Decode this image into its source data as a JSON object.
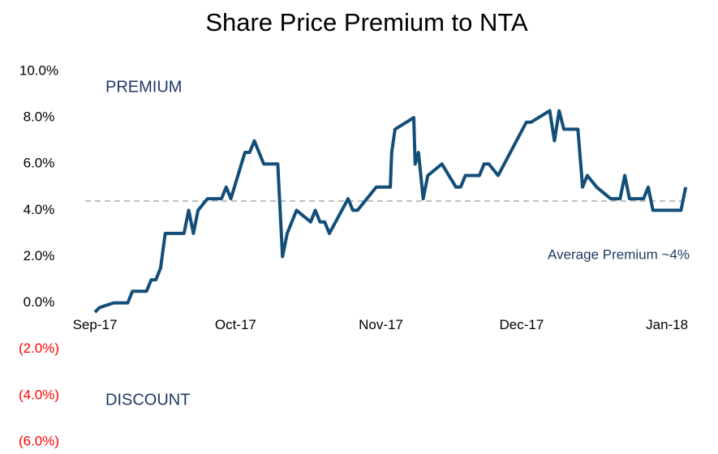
{
  "chart_data": {
    "type": "line",
    "title": "Share Price Premium to NTA",
    "annotations": [
      {
        "text": "PREMIUM",
        "color": "#1f3864"
      },
      {
        "text": "DISCOUNT",
        "color": "#1f3864"
      },
      {
        "text": "Average Premium ~4%",
        "color": "#1f3864"
      }
    ],
    "average_line": {
      "value": 4.4,
      "color": "#bfbfbf",
      "dashed": true
    },
    "negative_tick_color": "#ff0000",
    "x": [
      0,
      1,
      4,
      7,
      8,
      11,
      12,
      13,
      14,
      15,
      19,
      20,
      21,
      22,
      24,
      27,
      28,
      29,
      32,
      33,
      34,
      36,
      39,
      40,
      41,
      43,
      46,
      47,
      48,
      49,
      50,
      54,
      55,
      56,
      58,
      60,
      63,
      63.3,
      64,
      68,
      68.3,
      69,
      70,
      71,
      74,
      77,
      78,
      79,
      82,
      83,
      84,
      86,
      92,
      93,
      97,
      98,
      99,
      100,
      103,
      104,
      105,
      107,
      110,
      112,
      113,
      114,
      117,
      118,
      119,
      125,
      126
    ],
    "series": [
      {
        "name": "Premium",
        "color": "#124e78",
        "values": [
          -0.4,
          -0.2,
          0,
          0,
          0.5,
          0.5,
          1.0,
          1.0,
          1.5,
          3.0,
          3.0,
          4.0,
          3.0,
          4.0,
          4.5,
          4.5,
          5.0,
          4.5,
          6.5,
          6.5,
          7.0,
          6.0,
          6.0,
          2.0,
          3.0,
          4.0,
          3.5,
          4.0,
          3.5,
          3.5,
          3.0,
          4.5,
          4.0,
          4.0,
          4.5,
          5.0,
          5.0,
          6.5,
          7.5,
          8.0,
          6.0,
          6.5,
          4.5,
          5.5,
          6.0,
          5.0,
          5.0,
          5.5,
          5.5,
          6.0,
          6.0,
          5.5,
          7.8,
          7.8,
          8.3,
          7.0,
          8.3,
          7.5,
          7.5,
          5.0,
          5.5,
          5.0,
          4.5,
          4.5,
          5.5,
          4.5,
          4.5,
          5.0,
          4.0,
          4.0,
          5.0
        ]
      }
    ],
    "xlim": [
      0,
      127
    ],
    "xticks": [
      {
        "value": 0,
        "label": "Sep-17"
      },
      {
        "value": 30,
        "label": "Oct-17"
      },
      {
        "value": 61,
        "label": "Nov-17"
      },
      {
        "value": 91,
        "label": "Dec-17"
      },
      {
        "value": 122,
        "label": "Jan-18"
      }
    ],
    "ylim": [
      -6,
      10
    ],
    "yticks": [
      {
        "value": 10,
        "label": "10.0%"
      },
      {
        "value": 8,
        "label": "8.0%"
      },
      {
        "value": 6,
        "label": "6.0%"
      },
      {
        "value": 4,
        "label": "4.0%"
      },
      {
        "value": 2,
        "label": "2.0%"
      },
      {
        "value": 0,
        "label": "0.0%"
      },
      {
        "value": -2,
        "label": "(2.0%)"
      },
      {
        "value": -4,
        "label": "(4.0%)"
      },
      {
        "value": -6,
        "label": "(6.0%)"
      }
    ],
    "grid": false
  }
}
